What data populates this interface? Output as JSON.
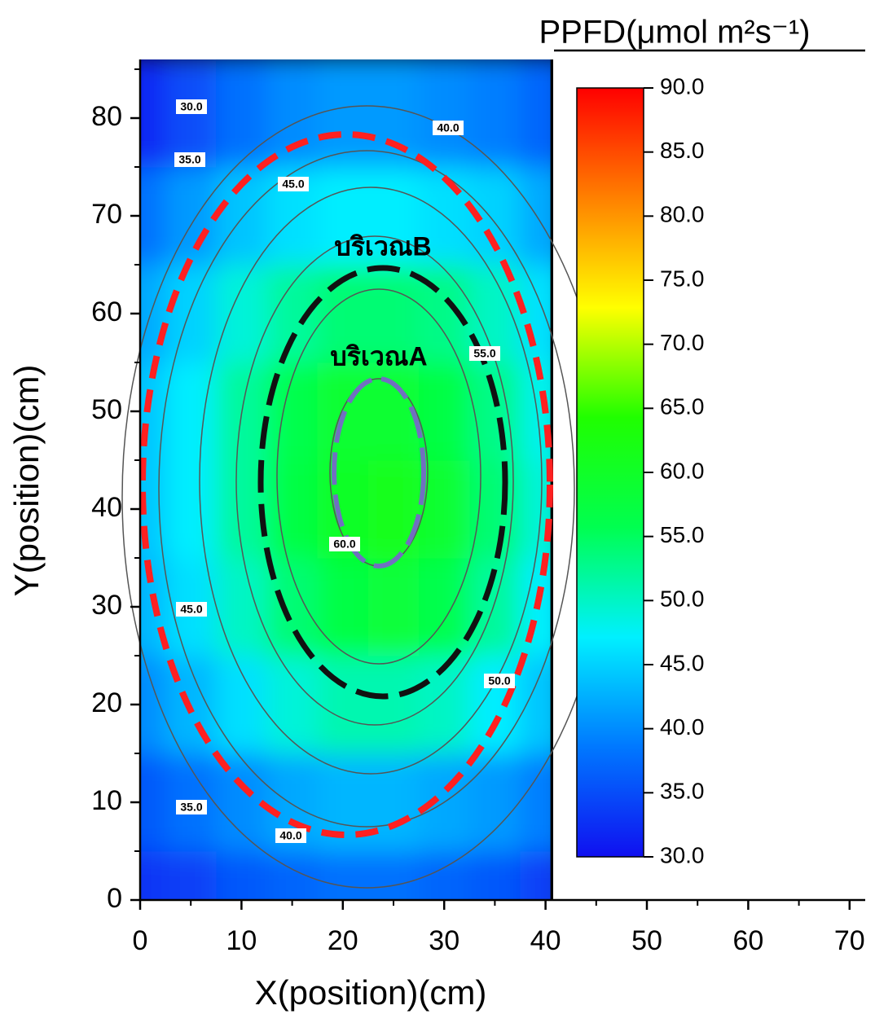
{
  "chart_data": {
    "type": "contour",
    "x_label": "X(position)(cm)",
    "y_label": "Y(position)(cm)",
    "colorbar_label": "PPFD(μmol m²s⁻¹)",
    "x": [
      0,
      5,
      10,
      15,
      20,
      25,
      30,
      35,
      40
    ],
    "y": [
      0,
      10,
      20,
      30,
      40,
      50,
      60,
      70,
      80
    ],
    "z": [
      [
        33,
        34,
        36,
        37,
        38,
        38,
        37,
        36,
        34
      ],
      [
        36,
        38,
        40,
        42,
        43,
        43,
        42,
        41,
        39
      ],
      [
        40,
        43,
        46,
        49,
        51,
        51,
        50,
        47,
        44
      ],
      [
        43,
        46,
        50,
        54,
        57,
        58,
        56,
        52,
        47
      ],
      [
        44,
        47,
        52,
        57,
        60,
        61,
        59,
        54,
        49
      ],
      [
        44,
        47,
        52,
        56,
        59,
        59,
        57,
        53,
        48
      ],
      [
        42,
        45,
        49,
        52,
        54,
        54,
        53,
        50,
        46
      ],
      [
        38,
        41,
        44,
        46,
        47,
        47,
        46,
        45,
        42
      ],
      [
        32,
        35,
        38,
        40,
        41,
        41,
        40,
        39,
        37
      ]
    ],
    "xlim": [
      0,
      71.5
    ],
    "ylim": [
      0,
      86
    ],
    "xticks": [
      0,
      10,
      20,
      30,
      40,
      50,
      60,
      70
    ],
    "yticks": [
      0,
      10,
      20,
      30,
      40,
      50,
      60,
      70,
      80
    ],
    "zlim": [
      30,
      90
    ],
    "zticks": [
      {
        "value": 30,
        "label": "30.0"
      },
      {
        "value": 35,
        "label": "35.0"
      },
      {
        "value": 40,
        "label": "40.0"
      },
      {
        "value": 45,
        "label": "45.0"
      },
      {
        "value": 50,
        "label": "50.0"
      },
      {
        "value": 55,
        "label": "55.0"
      },
      {
        "value": 60,
        "label": "60.0"
      },
      {
        "value": 65,
        "label": "65.0"
      },
      {
        "value": 70,
        "label": "70.0"
      },
      {
        "value": 75,
        "label": "75.0"
      },
      {
        "value": 80,
        "label": "80.0"
      },
      {
        "value": 85,
        "label": "85.0"
      },
      {
        "value": 90,
        "label": "90.0"
      }
    ],
    "colormap": [
      "#1010f0",
      "#0078ff",
      "#00f0ff",
      "#00ff50",
      "#20ff00",
      "#ffff00",
      "#ff8000",
      "#ff0000"
    ],
    "contour_labels": [
      "30.0",
      "40.0",
      "35.0",
      "45.0",
      "55.0",
      "60.0",
      "45.0",
      "50.0",
      "35.0",
      "40.0"
    ],
    "annotations": [
      "บริเวณB",
      "บริเวณA"
    ]
  }
}
